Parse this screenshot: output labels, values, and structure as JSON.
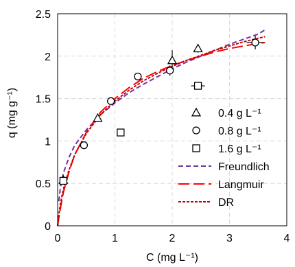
{
  "chart_data": {
    "type": "scatter",
    "xlabel": "C (mg L⁻¹)",
    "ylabel": "q  (mg g⁻¹)",
    "xlim": [
      0,
      4
    ],
    "ylim": [
      0,
      2.5
    ],
    "xticks": [
      "0",
      "1",
      "2",
      "3",
      "4"
    ],
    "yticks": [
      "0",
      "0.5",
      "1",
      "1.5",
      "2",
      "2.5"
    ],
    "x_tick_values": [
      0,
      1,
      2,
      3,
      4
    ],
    "y_tick_values": [
      0,
      0.5,
      1,
      1.5,
      2,
      2.5
    ],
    "grid": true,
    "legend_position": "bottom-right",
    "series": [
      {
        "name": "0.4 g L⁻¹",
        "kind": "points",
        "marker": "triangle",
        "color": "#000000",
        "points": [
          {
            "x": 0.1,
            "y": 0.54
          },
          {
            "x": 0.7,
            "y": 1.27
          },
          {
            "x": 2.0,
            "y": 1.95,
            "yerr": 0.12
          },
          {
            "x": 2.45,
            "y": 2.09,
            "yerr": 0.05
          }
        ]
      },
      {
        "name": "0.8 g L⁻¹",
        "kind": "points",
        "marker": "circle",
        "color": "#000000",
        "points": [
          {
            "x": 0.46,
            "y": 0.95
          },
          {
            "x": 0.93,
            "y": 1.47
          },
          {
            "x": 1.4,
            "y": 1.76
          },
          {
            "x": 1.96,
            "y": 1.83,
            "yerr": 0.06
          },
          {
            "x": 3.45,
            "y": 2.16,
            "xerr": 0.15,
            "yerr": 0.08
          }
        ]
      },
      {
        "name": "1.6 g L⁻¹",
        "kind": "points",
        "marker": "square",
        "color": "#000000",
        "points": [
          {
            "x": 0.1,
            "y": 0.53
          },
          {
            "x": 1.1,
            "y": 1.1
          },
          {
            "x": 2.45,
            "y": 1.65,
            "xerr": 0.12
          }
        ]
      },
      {
        "name": "Freundlich",
        "kind": "line",
        "dash": "short-dash",
        "color": "#7030a0",
        "points": [
          {
            "x": 0.02,
            "y": 0.29
          },
          {
            "x": 0.05,
            "y": 0.46
          },
          {
            "x": 0.1,
            "y": 0.62
          },
          {
            "x": 0.2,
            "y": 0.81
          },
          {
            "x": 0.3,
            "y": 0.95
          },
          {
            "x": 0.5,
            "y": 1.13
          },
          {
            "x": 0.75,
            "y": 1.31
          },
          {
            "x": 1.0,
            "y": 1.45
          },
          {
            "x": 1.25,
            "y": 1.57
          },
          {
            "x": 1.5,
            "y": 1.67
          },
          {
            "x": 1.75,
            "y": 1.76
          },
          {
            "x": 2.0,
            "y": 1.85
          },
          {
            "x": 2.25,
            "y": 1.93
          },
          {
            "x": 2.5,
            "y": 2.0
          },
          {
            "x": 2.75,
            "y": 2.07
          },
          {
            "x": 3.0,
            "y": 2.14
          },
          {
            "x": 3.25,
            "y": 2.2
          },
          {
            "x": 3.5,
            "y": 2.26
          },
          {
            "x": 3.62,
            "y": 2.31
          }
        ]
      },
      {
        "name": "Langmuir",
        "kind": "line",
        "dash": "long-dash",
        "color": "#ff0000",
        "points": [
          {
            "x": 0.0,
            "y": 0.0
          },
          {
            "x": 0.02,
            "y": 0.09
          },
          {
            "x": 0.05,
            "y": 0.21
          },
          {
            "x": 0.1,
            "y": 0.39
          },
          {
            "x": 0.2,
            "y": 0.64
          },
          {
            "x": 0.3,
            "y": 0.84
          },
          {
            "x": 0.5,
            "y": 1.1
          },
          {
            "x": 0.75,
            "y": 1.34
          },
          {
            "x": 1.0,
            "y": 1.5
          },
          {
            "x": 1.25,
            "y": 1.63
          },
          {
            "x": 1.5,
            "y": 1.74
          },
          {
            "x": 1.75,
            "y": 1.82
          },
          {
            "x": 2.0,
            "y": 1.89
          },
          {
            "x": 2.25,
            "y": 1.95
          },
          {
            "x": 2.5,
            "y": 2.0
          },
          {
            "x": 2.75,
            "y": 2.05
          },
          {
            "x": 3.0,
            "y": 2.09
          },
          {
            "x": 3.25,
            "y": 2.12
          },
          {
            "x": 3.5,
            "y": 2.15
          },
          {
            "x": 3.62,
            "y": 2.16
          }
        ]
      },
      {
        "name": "DR",
        "kind": "line",
        "dash": "dot",
        "color": "#c00000",
        "points": [
          {
            "x": 0.0,
            "y": 0.0
          },
          {
            "x": 0.02,
            "y": 0.13
          },
          {
            "x": 0.05,
            "y": 0.27
          },
          {
            "x": 0.1,
            "y": 0.43
          },
          {
            "x": 0.2,
            "y": 0.66
          },
          {
            "x": 0.3,
            "y": 0.84
          },
          {
            "x": 0.5,
            "y": 1.09
          },
          {
            "x": 0.75,
            "y": 1.31
          },
          {
            "x": 1.0,
            "y": 1.47
          },
          {
            "x": 1.25,
            "y": 1.6
          },
          {
            "x": 1.5,
            "y": 1.71
          },
          {
            "x": 1.75,
            "y": 1.8
          },
          {
            "x": 2.0,
            "y": 1.88
          },
          {
            "x": 2.25,
            "y": 1.95
          },
          {
            "x": 2.5,
            "y": 2.01
          },
          {
            "x": 2.75,
            "y": 2.07
          },
          {
            "x": 3.0,
            "y": 2.12
          },
          {
            "x": 3.25,
            "y": 2.17
          },
          {
            "x": 3.5,
            "y": 2.21
          },
          {
            "x": 3.62,
            "y": 2.23
          }
        ]
      }
    ]
  }
}
